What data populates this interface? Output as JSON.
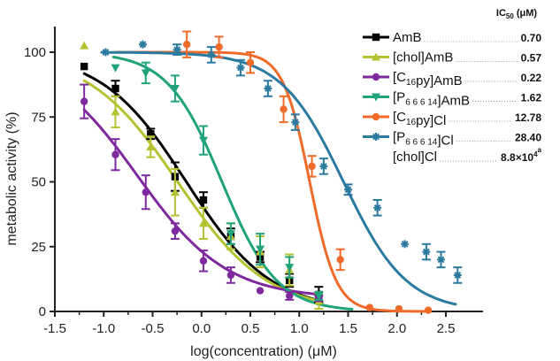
{
  "chart_data": {
    "type": "scatter",
    "xlabel": "log(concentration) (μM)",
    "ylabel": "metabolic activity (%)",
    "xlim": [
      -1.5,
      2.75
    ],
    "ylim": [
      0,
      110
    ],
    "xticks": [
      "-1.5",
      "-1.0",
      "-0.5",
      "0.0",
      "0.5",
      "1.0",
      "1.5",
      "2.0",
      "2.5"
    ],
    "yticks": [
      "0",
      "25",
      "50",
      "75",
      "100"
    ],
    "grid": false,
    "legend_position": "top-right",
    "legend_header": {
      "main": "IC",
      "sub": "50",
      "rest": " (μM)"
    },
    "series": [
      {
        "name": "AmB",
        "name_parts": [
          {
            "t": "AmB"
          }
        ],
        "ic50": "0.70",
        "color": "#000000",
        "marker": "square",
        "curve": {
          "log_ic50": -0.155,
          "hill": 1.0,
          "top": 100,
          "bottom": 0,
          "x_range": [
            -1.2,
            1.22
          ]
        },
        "points": [
          {
            "x": -1.2,
            "y": 94.5,
            "err": 0
          },
          {
            "x": -0.88,
            "y": 86,
            "err": 3
          },
          {
            "x": -0.52,
            "y": 68.5,
            "err": 2
          },
          {
            "x": -0.27,
            "y": 52,
            "err": 5.5
          },
          {
            "x": 0.02,
            "y": 43,
            "err": 3
          },
          {
            "x": 0.3,
            "y": 29,
            "err": 3
          },
          {
            "x": 0.6,
            "y": 21,
            "err": 2
          },
          {
            "x": 0.9,
            "y": 12,
            "err": 2.5
          },
          {
            "x": 1.2,
            "y": 6.5,
            "err": 3
          }
        ]
      },
      {
        "name": "[chol]AmB",
        "name_parts": [
          {
            "t": "[chol]AmB"
          }
        ],
        "ic50": "0.57",
        "color": "#b5c232",
        "marker": "triangle-up",
        "curve": {
          "log_ic50": -0.244,
          "hill": 0.95,
          "top": 100,
          "bottom": 0,
          "x_range": [
            -1.2,
            1.22
          ]
        },
        "points": [
          {
            "x": -1.2,
            "y": 102.5,
            "err": 0
          },
          {
            "x": -0.88,
            "y": 77,
            "err": 6
          },
          {
            "x": -0.52,
            "y": 63.5,
            "err": 4
          },
          {
            "x": -0.27,
            "y": 46,
            "err": 9
          },
          {
            "x": 0.02,
            "y": 34,
            "err": 6
          },
          {
            "x": 0.3,
            "y": 29,
            "err": 5
          },
          {
            "x": 0.6,
            "y": 23,
            "err": 6
          },
          {
            "x": 0.9,
            "y": 16,
            "err": 6
          },
          {
            "x": 1.2,
            "y": 4,
            "err": 3
          }
        ]
      },
      {
        "name": "[C16py]AmB",
        "name_parts": [
          {
            "t": "[C"
          },
          {
            "t": "16",
            "sub": true
          },
          {
            "t": "py]AmB"
          }
        ],
        "ic50": "0.22",
        "color": "#7e2a9e",
        "marker": "circle",
        "curve": {
          "log_ic50": -0.658,
          "hill": 0.95,
          "top": 100,
          "bottom": 5,
          "x_range": [
            -1.2,
            1.22
          ]
        },
        "points": [
          {
            "x": -1.2,
            "y": 81,
            "err": 6.5
          },
          {
            "x": -0.88,
            "y": 60.5,
            "err": 6
          },
          {
            "x": -0.57,
            "y": 46,
            "err": 6.5
          },
          {
            "x": -0.27,
            "y": 31,
            "err": 3
          },
          {
            "x": 0.02,
            "y": 19.5,
            "err": 4
          },
          {
            "x": 0.3,
            "y": 14,
            "err": 3
          },
          {
            "x": 0.6,
            "y": 8,
            "err": 0
          },
          {
            "x": 0.9,
            "y": 6,
            "err": 1.5
          },
          {
            "x": 1.2,
            "y": 5,
            "err": 1
          }
        ]
      },
      {
        "name": "[P6 6 6 14]AmB",
        "name_parts": [
          {
            "t": "[P"
          },
          {
            "t": "6 6 6 14",
            "sub": true
          },
          {
            "t": "]AmB"
          }
        ],
        "ic50": "1.62",
        "color": "#1fa37a",
        "marker": "triangle-down",
        "curve": {
          "log_ic50": 0.21,
          "hill": 1.55,
          "top": 100,
          "bottom": 0,
          "x_range": [
            -0.9,
            1.54
          ]
        },
        "points": [
          {
            "x": -0.88,
            "y": 94,
            "err": 0
          },
          {
            "x": -0.57,
            "y": 92,
            "err": 4
          },
          {
            "x": -0.27,
            "y": 86,
            "err": 5
          },
          {
            "x": 0.02,
            "y": 66,
            "err": 5.5
          },
          {
            "x": 0.3,
            "y": 30,
            "err": 4
          },
          {
            "x": 0.6,
            "y": 24,
            "err": 6
          },
          {
            "x": 0.9,
            "y": 17,
            "err": 4
          },
          {
            "x": 1.2,
            "y": 6,
            "err": 1.5
          }
        ]
      },
      {
        "name": "[C16py]Cl",
        "name_parts": [
          {
            "t": "[C"
          },
          {
            "t": "16",
            "sub": true
          },
          {
            "t": "py]Cl"
          }
        ],
        "ic50": "12.78",
        "color": "#f06a2a",
        "marker": "circle",
        "curve": {
          "log_ic50": 1.107,
          "hill": 3.2,
          "top": 100,
          "bottom": 0,
          "x_range": [
            -0.88,
            2.34
          ]
        },
        "points": [
          {
            "x": -0.15,
            "y": 103,
            "err": 5
          },
          {
            "x": 0.18,
            "y": 102,
            "err": 4
          },
          {
            "x": 0.5,
            "y": 96,
            "err": 4
          },
          {
            "x": 0.84,
            "y": 78,
            "err": 5
          },
          {
            "x": 1.13,
            "y": 56,
            "err": 4
          },
          {
            "x": 1.42,
            "y": 20,
            "err": 4
          },
          {
            "x": 1.72,
            "y": 1.5,
            "err": 0
          },
          {
            "x": 2.02,
            "y": 1,
            "err": 0
          },
          {
            "x": 2.32,
            "y": 0.5,
            "err": 0
          }
        ]
      },
      {
        "name": "[P6 6 6 14]Cl",
        "name_parts": [
          {
            "t": "[P"
          },
          {
            "t": "6 6 6 14",
            "sub": true
          },
          {
            "t": "]Cl"
          }
        ],
        "ic50": "28.40",
        "color": "#2b7aa0",
        "marker": "star",
        "curve": {
          "log_ic50": 1.453,
          "hill": 1.35,
          "top": 100,
          "bottom": 0,
          "x_range": [
            -1.02,
            2.6
          ]
        },
        "points": [
          {
            "x": -0.98,
            "y": 100,
            "err": 0
          },
          {
            "x": -0.6,
            "y": 103,
            "err": 0
          },
          {
            "x": -0.25,
            "y": 101,
            "err": 2
          },
          {
            "x": 0.1,
            "y": 99,
            "err": 3
          },
          {
            "x": 0.4,
            "y": 94,
            "err": 3
          },
          {
            "x": 0.68,
            "y": 86,
            "err": 3
          },
          {
            "x": 0.96,
            "y": 73,
            "err": 3
          },
          {
            "x": 1.25,
            "y": 56,
            "err": 3
          },
          {
            "x": 1.5,
            "y": 47,
            "err": 2
          },
          {
            "x": 1.8,
            "y": 40,
            "err": 3
          },
          {
            "x": 2.08,
            "y": 26,
            "err": 0
          },
          {
            "x": 2.3,
            "y": 23,
            "err": 3
          },
          {
            "x": 2.45,
            "y": 20,
            "err": 3
          },
          {
            "x": 2.62,
            "y": 14,
            "err": 3
          }
        ]
      },
      {
        "name": "[chol]Cl",
        "name_parts": [
          {
            "t": "[chol]Cl"
          }
        ],
        "ic50": "8.8×10⁴ᵃ",
        "ic50_parts": [
          {
            "t": "8.8×10"
          },
          {
            "t": "4",
            "sup": true
          },
          {
            "t": "a",
            "sup": true,
            "gap": true
          }
        ],
        "color": "#111111",
        "marker": "none",
        "points": []
      }
    ]
  }
}
